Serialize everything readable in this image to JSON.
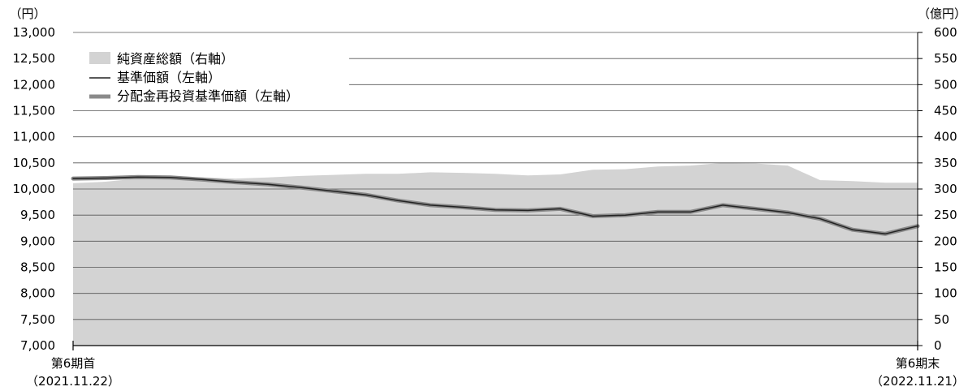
{
  "chart_data": {
    "type": "area",
    "title": "",
    "y_left": {
      "unit_label": "（円）",
      "ylim": [
        7000,
        13000
      ],
      "ticks": [
        "13,000",
        "12,500",
        "12,000",
        "11,500",
        "11,000",
        "10,500",
        "10,000",
        "9,500",
        "9,000",
        "8,500",
        "8,000",
        "7,500",
        "7,000"
      ]
    },
    "y_right": {
      "unit_label": "（億円）",
      "ylim": [
        0,
        600
      ],
      "ticks": [
        "600",
        "550",
        "500",
        "450",
        "400",
        "350",
        "300",
        "250",
        "200",
        "150",
        "100",
        "50",
        "0"
      ]
    },
    "x_labels": {
      "start_period": "第6期首",
      "start_date": "（2021.11.22）",
      "end_period": "第6期末",
      "end_date": "（2022.11.21）"
    },
    "x": [
      "2021-11-22",
      "2021-12-06",
      "2021-12-20",
      "2022-01-03",
      "2022-01-17",
      "2022-01-31",
      "2022-02-14",
      "2022-02-28",
      "2022-03-14",
      "2022-03-28",
      "2022-04-11",
      "2022-04-25",
      "2022-05-09",
      "2022-05-23",
      "2022-06-06",
      "2022-06-20",
      "2022-07-04",
      "2022-07-18",
      "2022-08-01",
      "2022-08-15",
      "2022-08-29",
      "2022-09-12",
      "2022-09-26",
      "2022-10-10",
      "2022-10-24",
      "2022-11-07",
      "2022-11-21"
    ],
    "legend": [
      "純資産総額（右軸）",
      "基準価額（左軸）",
      "分配金再投資基準価額（左軸）"
    ],
    "legend_position": "top-left",
    "grid": true,
    "series": [
      {
        "name": "純資産総額（右軸）",
        "axis": "right",
        "style": "area",
        "color": "#d3d3d3",
        "values": [
          311,
          314,
          320,
          323,
          322,
          320,
          322,
          325,
          327,
          329,
          329,
          332,
          331,
          329,
          326,
          328,
          337,
          338,
          343,
          345,
          350,
          349,
          345,
          317,
          315,
          312,
          312
        ]
      },
      {
        "name": "基準価額（左軸）",
        "axis": "left",
        "style": "line",
        "color": "#222222",
        "values": [
          10200,
          10210,
          10230,
          10220,
          10180,
          10130,
          10090,
          10030,
          9960,
          9890,
          9780,
          9690,
          9650,
          9600,
          9590,
          9620,
          9480,
          9500,
          9560,
          9560,
          9690,
          9620,
          9550,
          9430,
          9220,
          9140,
          9290
        ]
      },
      {
        "name": "分配金再投資基準価額（左軸）",
        "axis": "left",
        "style": "line",
        "color": "#8a8a8a",
        "values": [
          10200,
          10210,
          10230,
          10220,
          10180,
          10130,
          10090,
          10030,
          9960,
          9890,
          9780,
          9690,
          9650,
          9600,
          9590,
          9620,
          9480,
          9500,
          9560,
          9560,
          9690,
          9620,
          9550,
          9430,
          9220,
          9140,
          9290
        ]
      }
    ]
  }
}
